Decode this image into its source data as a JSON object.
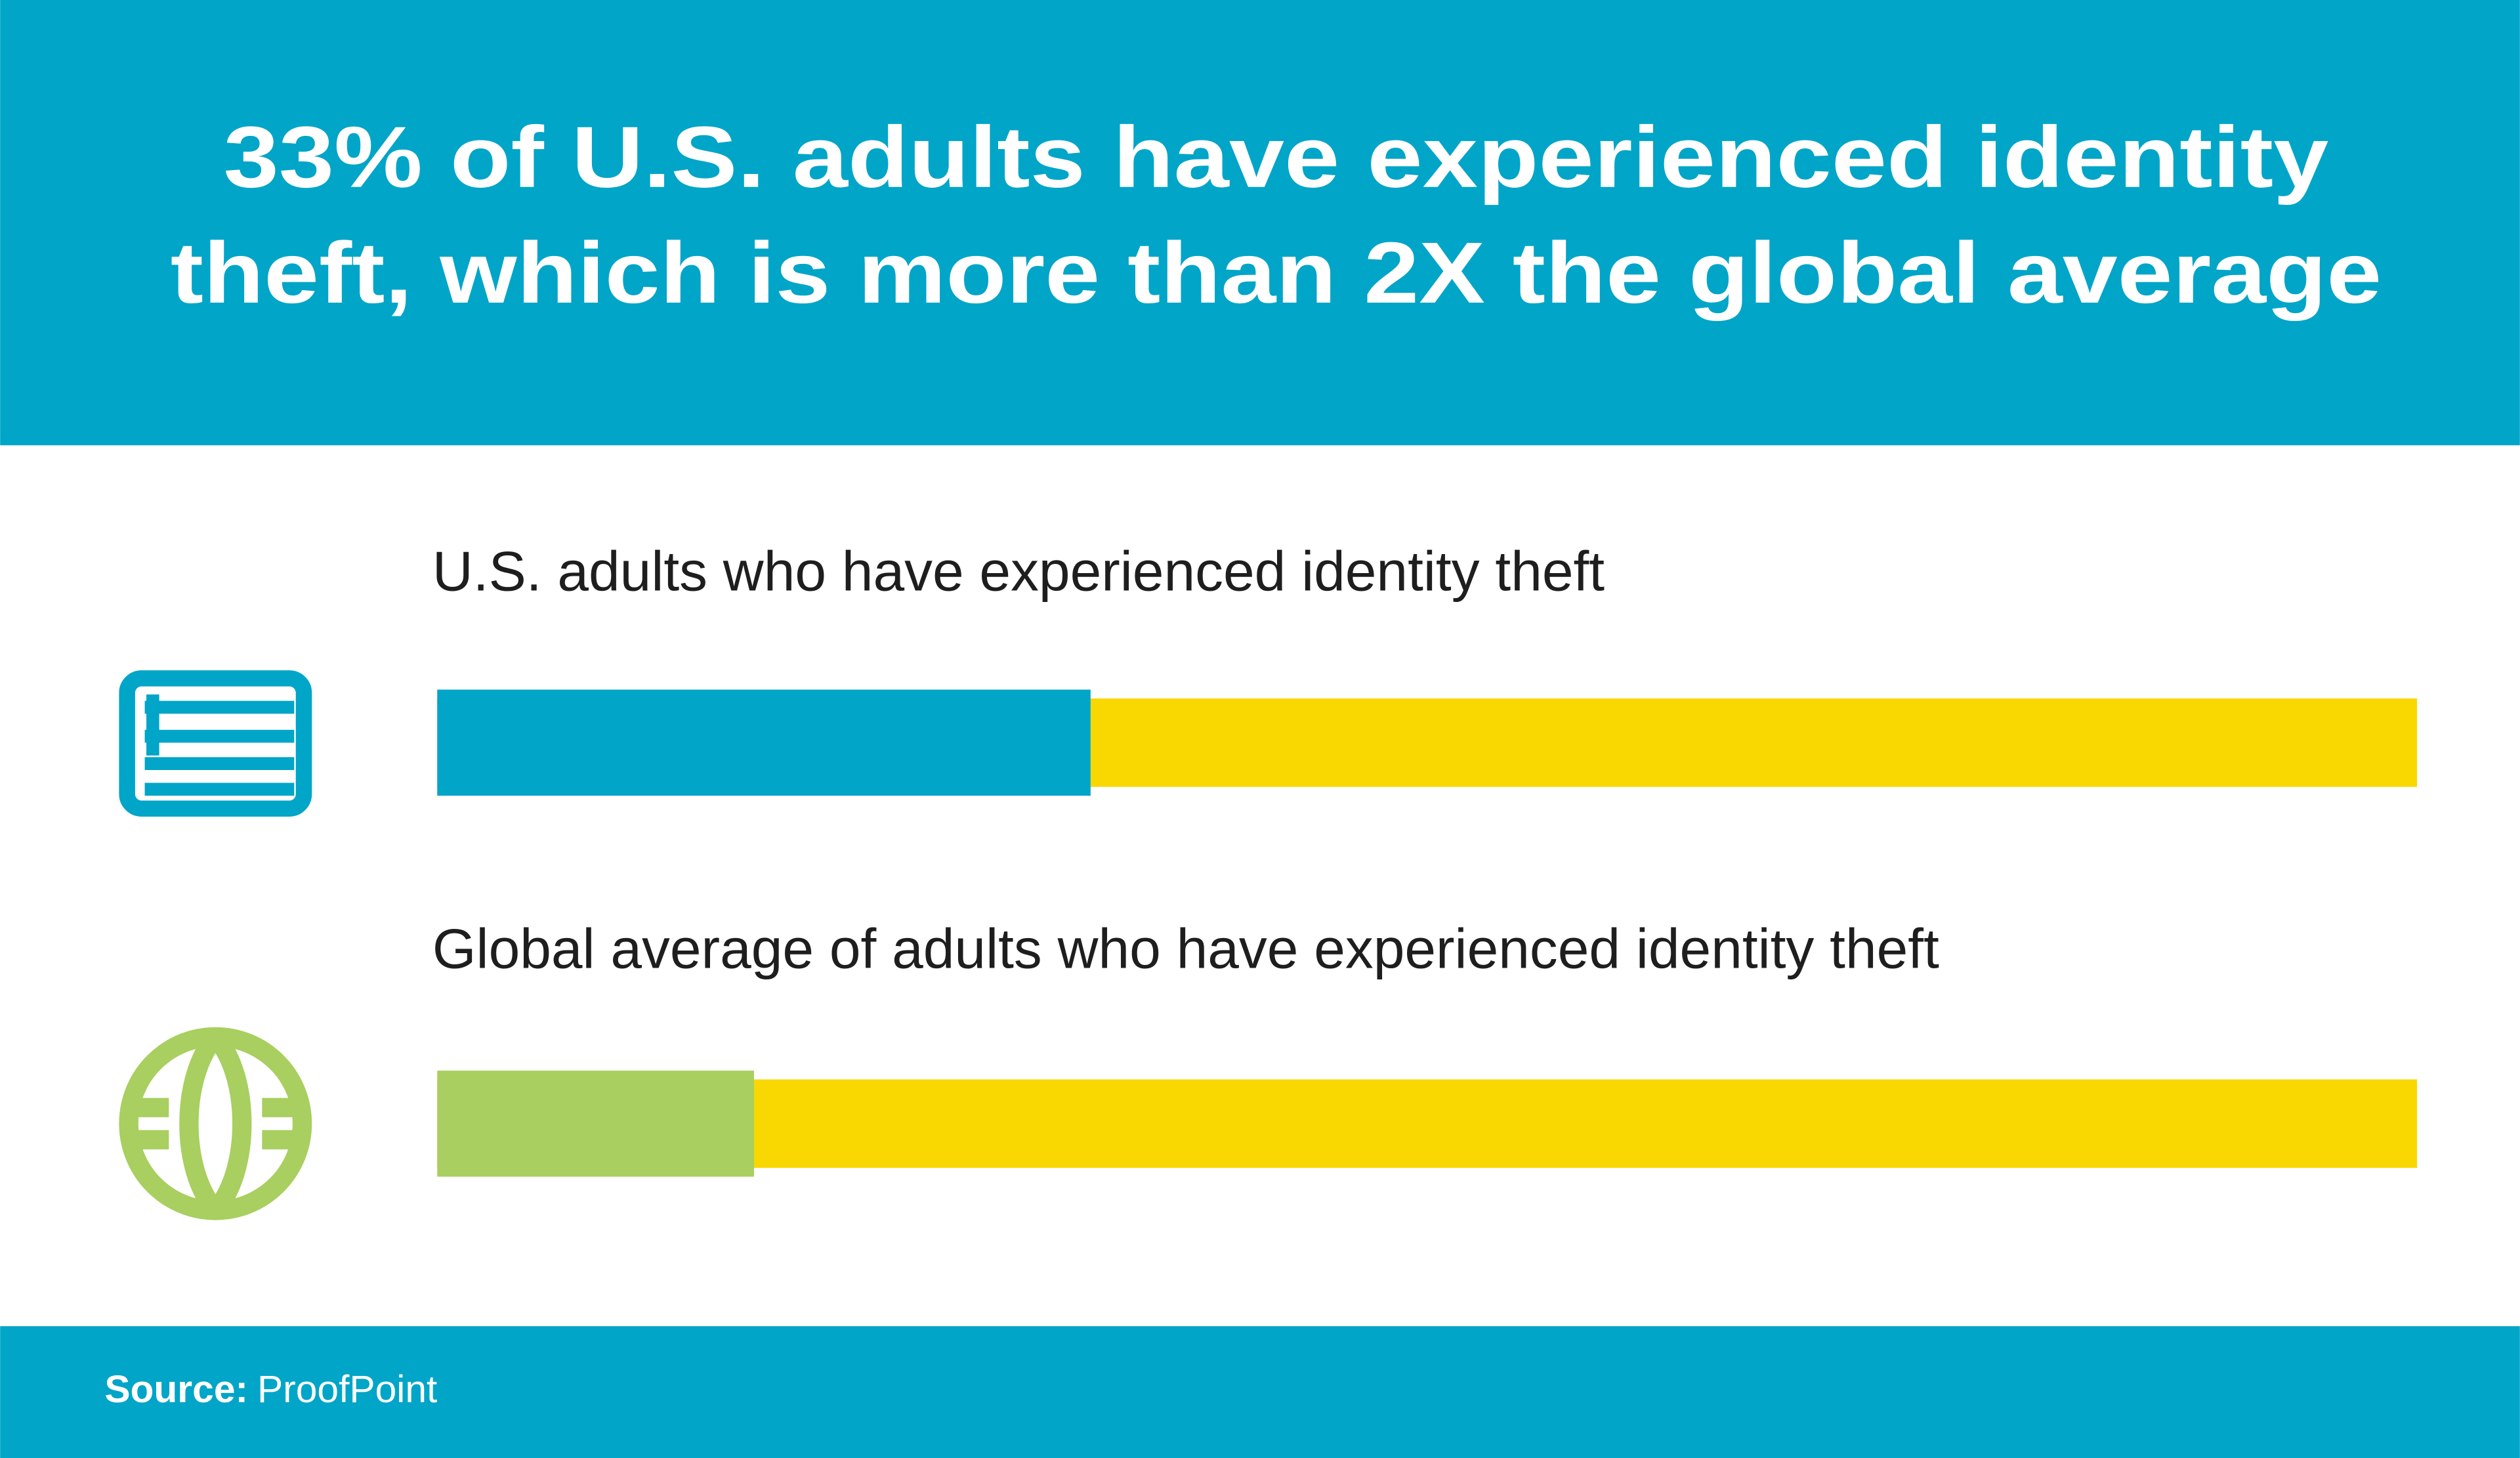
{
  "chart_data": {
    "type": "bar",
    "orientation": "horizontal",
    "title": [
      "33% of U.S. adults have experienced identity",
      "theft, which is more than 2X the global average"
    ],
    "categories": [
      "U.S. adults who have experienced identity theft",
      "Global average of adults who have experienced identity theft"
    ],
    "values": [
      33,
      16
    ],
    "colors": [
      "#00a5c8",
      "#a8cf5f"
    ],
    "track_color": "#f9d700",
    "xlim": [
      0,
      100
    ],
    "source": {
      "label": "Source:",
      "text": "ProofPoint"
    }
  }
}
